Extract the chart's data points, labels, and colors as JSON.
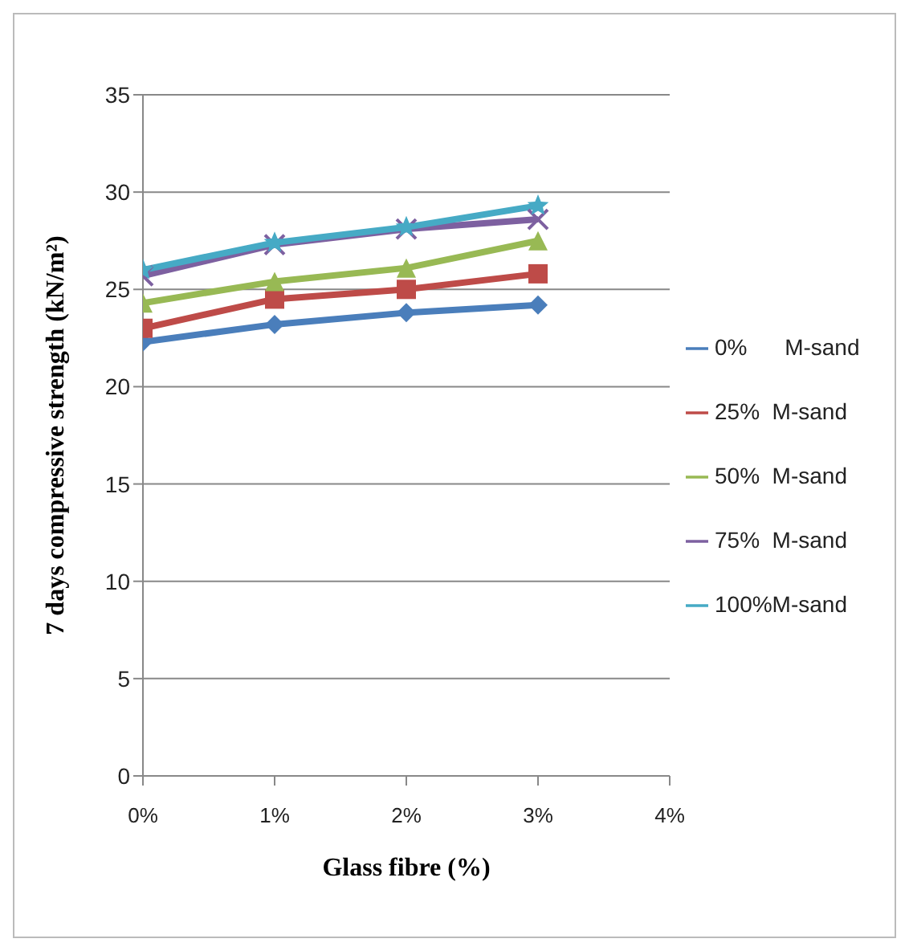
{
  "chart_data": {
    "type": "line",
    "xlabel": "Glass fibre (%)",
    "ylabel": "7 days compressive strength (kN/m²)",
    "x": [
      0,
      1,
      2,
      3
    ],
    "xlim": [
      0,
      4
    ],
    "xticks": [
      {
        "value": 0,
        "label": "0%"
      },
      {
        "value": 1,
        "label": "1%"
      },
      {
        "value": 2,
        "label": "2%"
      },
      {
        "value": 3,
        "label": "3%"
      },
      {
        "value": 4,
        "label": "4%"
      }
    ],
    "ylim": [
      0,
      35
    ],
    "yticks": [
      0,
      5,
      10,
      15,
      20,
      25,
      30,
      35
    ],
    "grid": "y",
    "legend": "right",
    "series": [
      {
        "name": "0%      M-sand",
        "color": "#4a7ebb",
        "marker": "diamond",
        "values": [
          22.3,
          23.2,
          23.8,
          24.2
        ]
      },
      {
        "name": "25%  M-sand",
        "color": "#be4b48",
        "marker": "square",
        "values": [
          23.0,
          24.5,
          25.0,
          25.8
        ]
      },
      {
        "name": "50%  M-sand",
        "color": "#98b954",
        "marker": "triangle",
        "values": [
          24.3,
          25.4,
          26.1,
          27.5
        ]
      },
      {
        "name": "75%  M-sand",
        "color": "#7d60a0",
        "marker": "cross",
        "values": [
          25.7,
          27.3,
          28.1,
          28.6
        ]
      },
      {
        "name": "100%M-sand",
        "color": "#46aac5",
        "marker": "star",
        "values": [
          26.0,
          27.4,
          28.2,
          29.3
        ]
      }
    ]
  }
}
